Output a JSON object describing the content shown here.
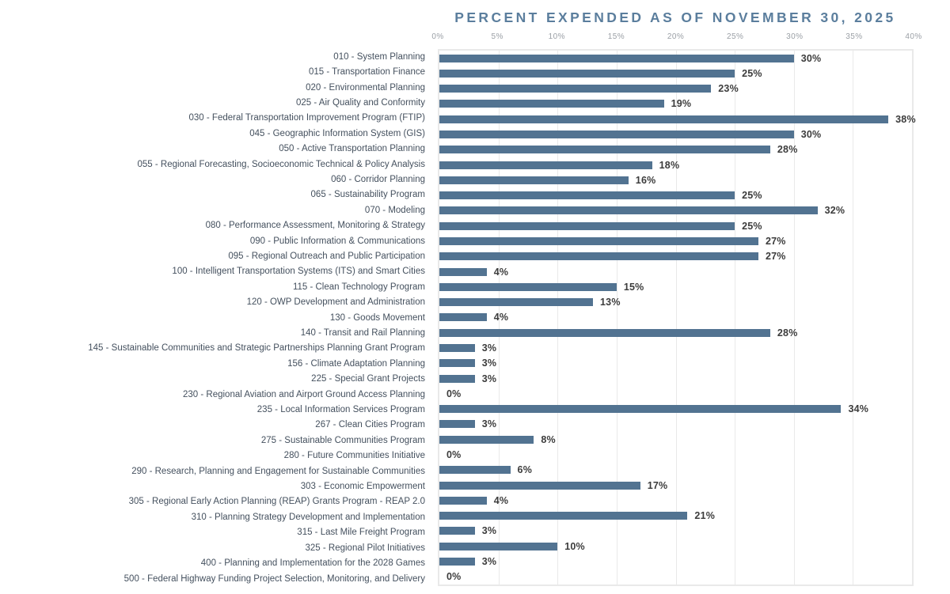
{
  "chart_data": {
    "type": "bar",
    "orientation": "horizontal",
    "title": "PERCENT EXPENDED AS OF NOVEMBER 30, 2025",
    "xlabel": "",
    "ylabel": "",
    "xlim": [
      0,
      40
    ],
    "x_tick_labels": [
      "0%",
      "5%",
      "10%",
      "15%",
      "20%",
      "25%",
      "30%",
      "35%",
      "40%"
    ],
    "grid": true,
    "legend": false,
    "bar_color": "#527391",
    "title_color": "#5b7e9d",
    "categories": [
      "010 - System Planning",
      "015 - Transportation Finance",
      "020 - Environmental Planning",
      "025 - Air Quality and Conformity",
      "030 - Federal Transportation Improvement Program (FTIP)",
      "045 - Geographic Information System (GIS)",
      "050 - Active Transportation Planning",
      "055 - Regional Forecasting, Socioeconomic Technical & Policy Analysis",
      "060 - Corridor Planning",
      "065 - Sustainability Program",
      "070 - Modeling",
      "080 - Performance Assessment, Monitoring & Strategy",
      "090 - Public Information & Communications",
      "095 - Regional Outreach and Public Participation",
      "100 - Intelligent Transportation Systems (ITS) and Smart Cities",
      "115 - Clean Technology Program",
      "120 - OWP Development and Administration",
      "130 - Goods Movement",
      "140 - Transit and Rail Planning",
      "145 - Sustainable Communities and Strategic Partnerships Planning Grant Program",
      "156 - Climate Adaptation Planning",
      "225 - Special Grant Projects",
      "230 - Regional Aviation and Airport Ground Access Planning",
      "235 - Local Information Services Program",
      "267 - Clean Cities Program",
      "275 - Sustainable Communities Program",
      "280 - Future Communities Initiative",
      "290 - Research, Planning and Engagement for Sustainable Communities",
      "303 - Economic Empowerment",
      "305 - Regional Early Action Planning (REAP) Grants Program - REAP 2.0",
      "310 - Planning Strategy Development and Implementation",
      "315 - Last Mile Freight Program",
      "325 - Regional Pilot Initiatives",
      "400 - Planning and Implementation for the 2028 Games",
      "500 - Federal Highway Funding Project Selection, Monitoring, and Delivery"
    ],
    "values": [
      30,
      25,
      23,
      19,
      38,
      30,
      28,
      18,
      16,
      25,
      32,
      25,
      27,
      27,
      4,
      15,
      13,
      4,
      28,
      3,
      3,
      3,
      0,
      34,
      3,
      8,
      0,
      6,
      17,
      4,
      21,
      3,
      10,
      3,
      0
    ],
    "data_labels": [
      "30%",
      "25%",
      "23%",
      "19%",
      "38%",
      "30%",
      "28%",
      "18%",
      "16%",
      "25%",
      "32%",
      "25%",
      "27%",
      "27%",
      "4%",
      "15%",
      "13%",
      "4%",
      "28%",
      "3%",
      "3%",
      "3%",
      "0%",
      "34%",
      "3%",
      "8%",
      "0%",
      "6%",
      "17%",
      "4%",
      "21%",
      "3%",
      "10%",
      "3%",
      "0%"
    ]
  }
}
